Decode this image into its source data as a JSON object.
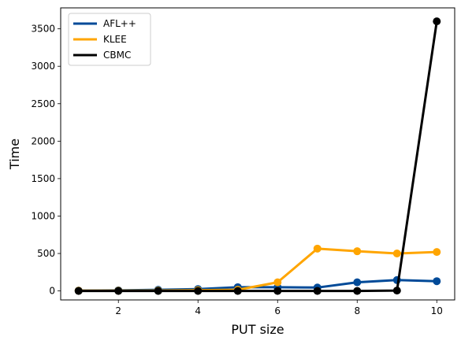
{
  "chart_data": {
    "type": "line",
    "title": "",
    "xlabel": "PUT size",
    "ylabel": "Time",
    "xlim": [
      0.55,
      10.45
    ],
    "ylim": [
      -120,
      3780
    ],
    "xticks": [
      2,
      4,
      6,
      8,
      10
    ],
    "yticks": [
      0,
      500,
      1000,
      1500,
      2000,
      2500,
      3000,
      3500
    ],
    "grid": false,
    "legend_position": "top-left",
    "x": [
      1,
      2,
      3,
      4,
      5,
      6,
      7,
      8,
      9,
      10
    ],
    "series": [
      {
        "name": "AFL++",
        "color": "#004a98",
        "values": [
          5,
          8,
          15,
          25,
          50,
          50,
          45,
          115,
          145,
          130
        ]
      },
      {
        "name": "KLEE",
        "color": "#ffa500",
        "values": [
          3,
          3,
          5,
          10,
          15,
          115,
          565,
          530,
          500,
          520
        ]
      },
      {
        "name": "CBMC",
        "color": "#000000",
        "values": [
          0,
          0,
          0,
          0,
          0,
          0,
          0,
          0,
          5,
          3600
        ]
      }
    ]
  }
}
